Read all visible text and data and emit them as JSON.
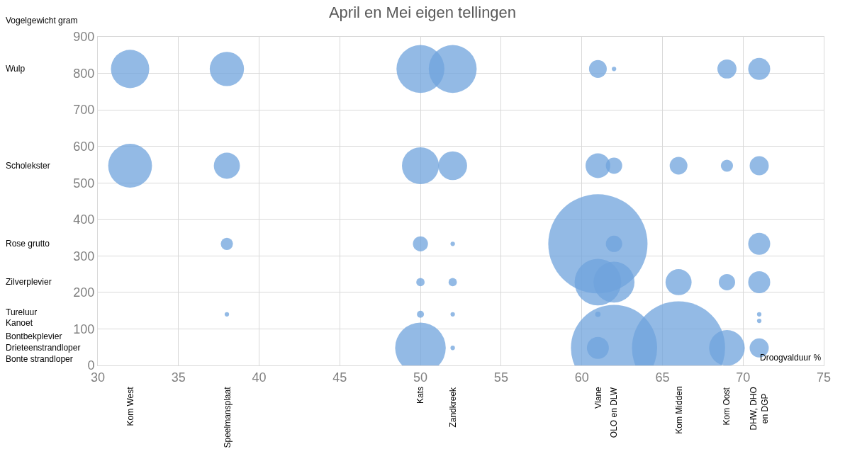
{
  "chart_data": {
    "type": "bubble",
    "title": "April en Mei eigen tellingen",
    "xlabel": "Droogvalduur %",
    "ylabel": "Vogelgewicht gram",
    "xlim": [
      30,
      75
    ],
    "xticks": [
      30,
      35,
      40,
      45,
      50,
      55,
      60,
      65,
      70,
      75
    ],
    "ylim": [
      0,
      900
    ],
    "yticks": [
      0,
      100,
      200,
      300,
      400,
      500,
      600,
      700,
      800,
      900
    ],
    "grid": true,
    "series": [
      {
        "color": "#6fa3dc",
        "x": [
          32,
          38,
          50,
          52,
          61,
          62,
          69,
          71,
          32,
          38,
          50,
          52,
          61,
          62,
          66,
          69,
          71,
          38,
          50,
          52,
          61,
          62,
          71,
          50,
          52,
          61,
          62,
          66,
          69,
          71,
          38,
          50,
          52,
          61,
          71,
          71,
          50,
          52,
          61,
          62,
          66,
          69,
          71
        ],
        "values": [
          812,
          812,
          812,
          812,
          812,
          812,
          812,
          812,
          547,
          547,
          547,
          547,
          547,
          547,
          547,
          547,
          547,
          333,
          333,
          333,
          333,
          333,
          333,
          228,
          228,
          228,
          228,
          228,
          228,
          228,
          140,
          140,
          140,
          140,
          140,
          122,
          48,
          48,
          48,
          48,
          48,
          48,
          48
        ],
        "sizes": [
          0.149,
          0.119,
          0.233,
          0.233,
          0.032,
          0.002,
          0.037,
          0.049,
          0.195,
          0.069,
          0.139,
          0.084,
          0.062,
          0.027,
          0.032,
          0.015,
          0.037,
          0.015,
          0.023,
          0.002,
          1,
          0.027,
          0.049,
          0.007,
          0.007,
          0.22,
          0.17,
          0.069,
          0.027,
          0.049,
          0.002,
          0.005,
          0.002,
          0.003,
          0.002,
          0.002,
          0.26,
          0.002,
          0.049,
          0.755,
          0.88,
          0.129,
          0.037
        ]
      }
    ],
    "annotations": [
      "Wulp",
      "Scholekster",
      "Rose grutto",
      "Zilverplevier",
      "Tureluur",
      "Kanoet",
      "Bontbekplevier",
      "Drieteenstrandloper",
      "Bonte strandloper",
      "Kom West",
      "Speelmansplaat",
      "Kats",
      "Zandkreek",
      "Vlane",
      "OLO en DLW",
      "Kom Midden",
      "Kom Oost",
      "DHW, DHO\nen DGP"
    ]
  }
}
